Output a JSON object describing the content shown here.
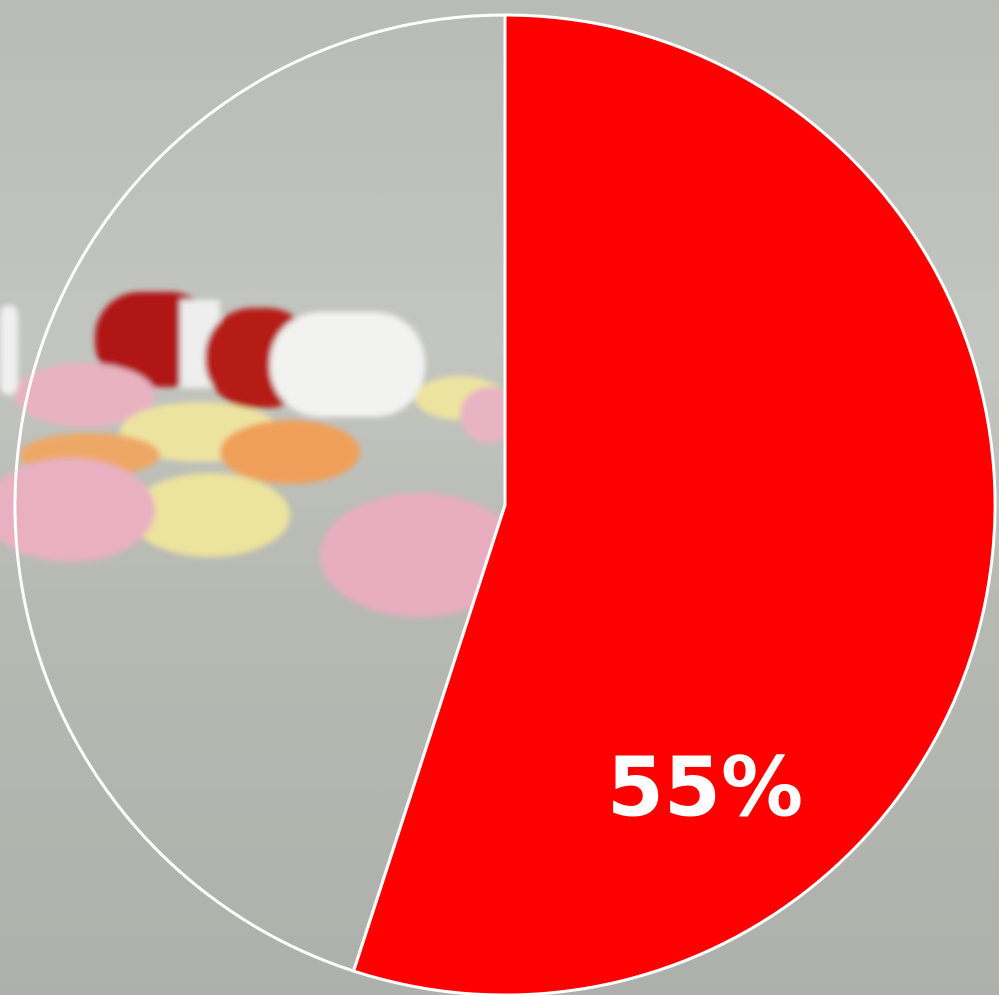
{
  "chart_data": {
    "type": "pie",
    "values": [
      55,
      45
    ],
    "value_labels": [
      "55%",
      null
    ],
    "colors": [
      "#ff0000",
      "transparent"
    ]
  }
}
